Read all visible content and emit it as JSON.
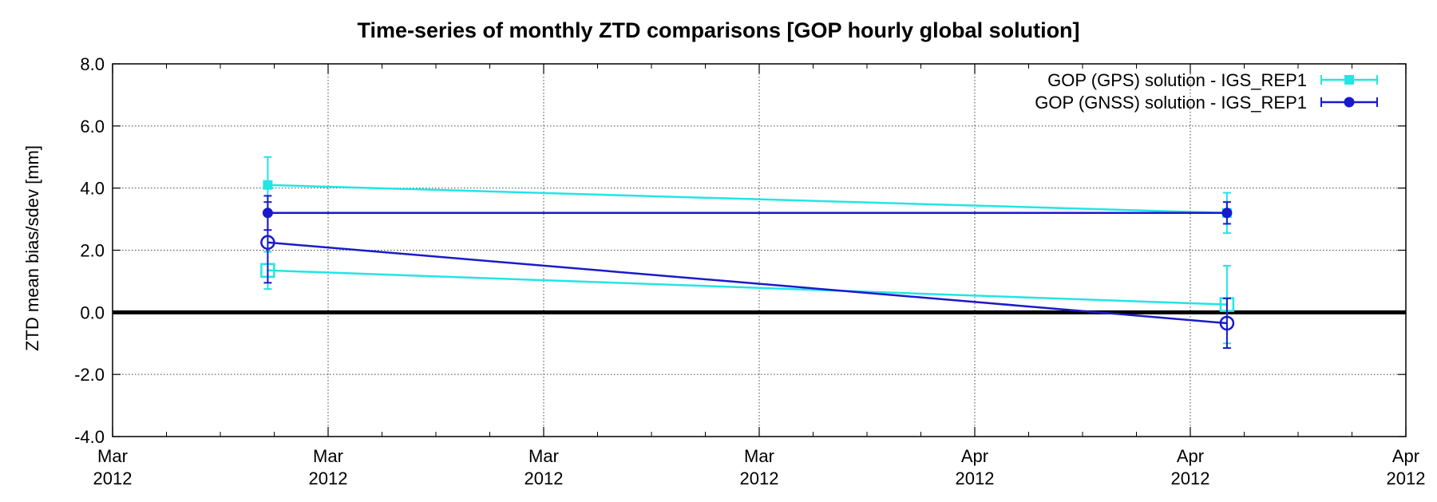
{
  "chart_data": {
    "type": "line",
    "title": "Time-series of monthly ZTD comparisons [GOP hourly global solution]",
    "xlabel": "",
    "ylabel": "ZTD mean bias/sdev [mm]",
    "ylim": [
      -4.0,
      8.0
    ],
    "yticks": [
      "8.0",
      "6.0",
      "4.0",
      "2.0",
      "0.0",
      "-2.0",
      "-4.0"
    ],
    "xticks": [
      {
        "month": "Mar",
        "year": "2012"
      },
      {
        "month": "Mar",
        "year": "2012"
      },
      {
        "month": "Mar",
        "year": "2012"
      },
      {
        "month": "Mar",
        "year": "2012"
      },
      {
        "month": "Apr",
        "year": "2012"
      },
      {
        "month": "Apr",
        "year": "2012"
      },
      {
        "month": "Apr",
        "year": "2012"
      }
    ],
    "xlim": [
      0,
      6
    ],
    "x": [
      0.72,
      5.17
    ],
    "grid": true,
    "legend_position": "top-right",
    "zero_line": true,
    "series": [
      {
        "name": "GOP (GPS) solution  - IGS_REP1",
        "kind": "sdev",
        "color": "#22e5e5",
        "marker": "filled-square",
        "y": [
          4.1,
          3.2
        ],
        "err": [
          0.9,
          0.65
        ]
      },
      {
        "name": "GOP (GNSS) solution - IGS_REP1",
        "kind": "sdev",
        "color": "#1a1acc",
        "marker": "filled-circle",
        "y": [
          3.2,
          3.2
        ],
        "err": [
          0.55,
          0.35
        ]
      },
      {
        "name": "",
        "kind": "bias",
        "color": "#22e5e5",
        "marker": "open-square",
        "y": [
          1.35,
          0.25
        ],
        "err": [
          0.6,
          1.25
        ]
      },
      {
        "name": "",
        "kind": "bias",
        "color": "#1a1acc",
        "marker": "open-circle",
        "y": [
          2.25,
          -0.35
        ],
        "err": [
          1.3,
          0.8
        ]
      }
    ]
  }
}
